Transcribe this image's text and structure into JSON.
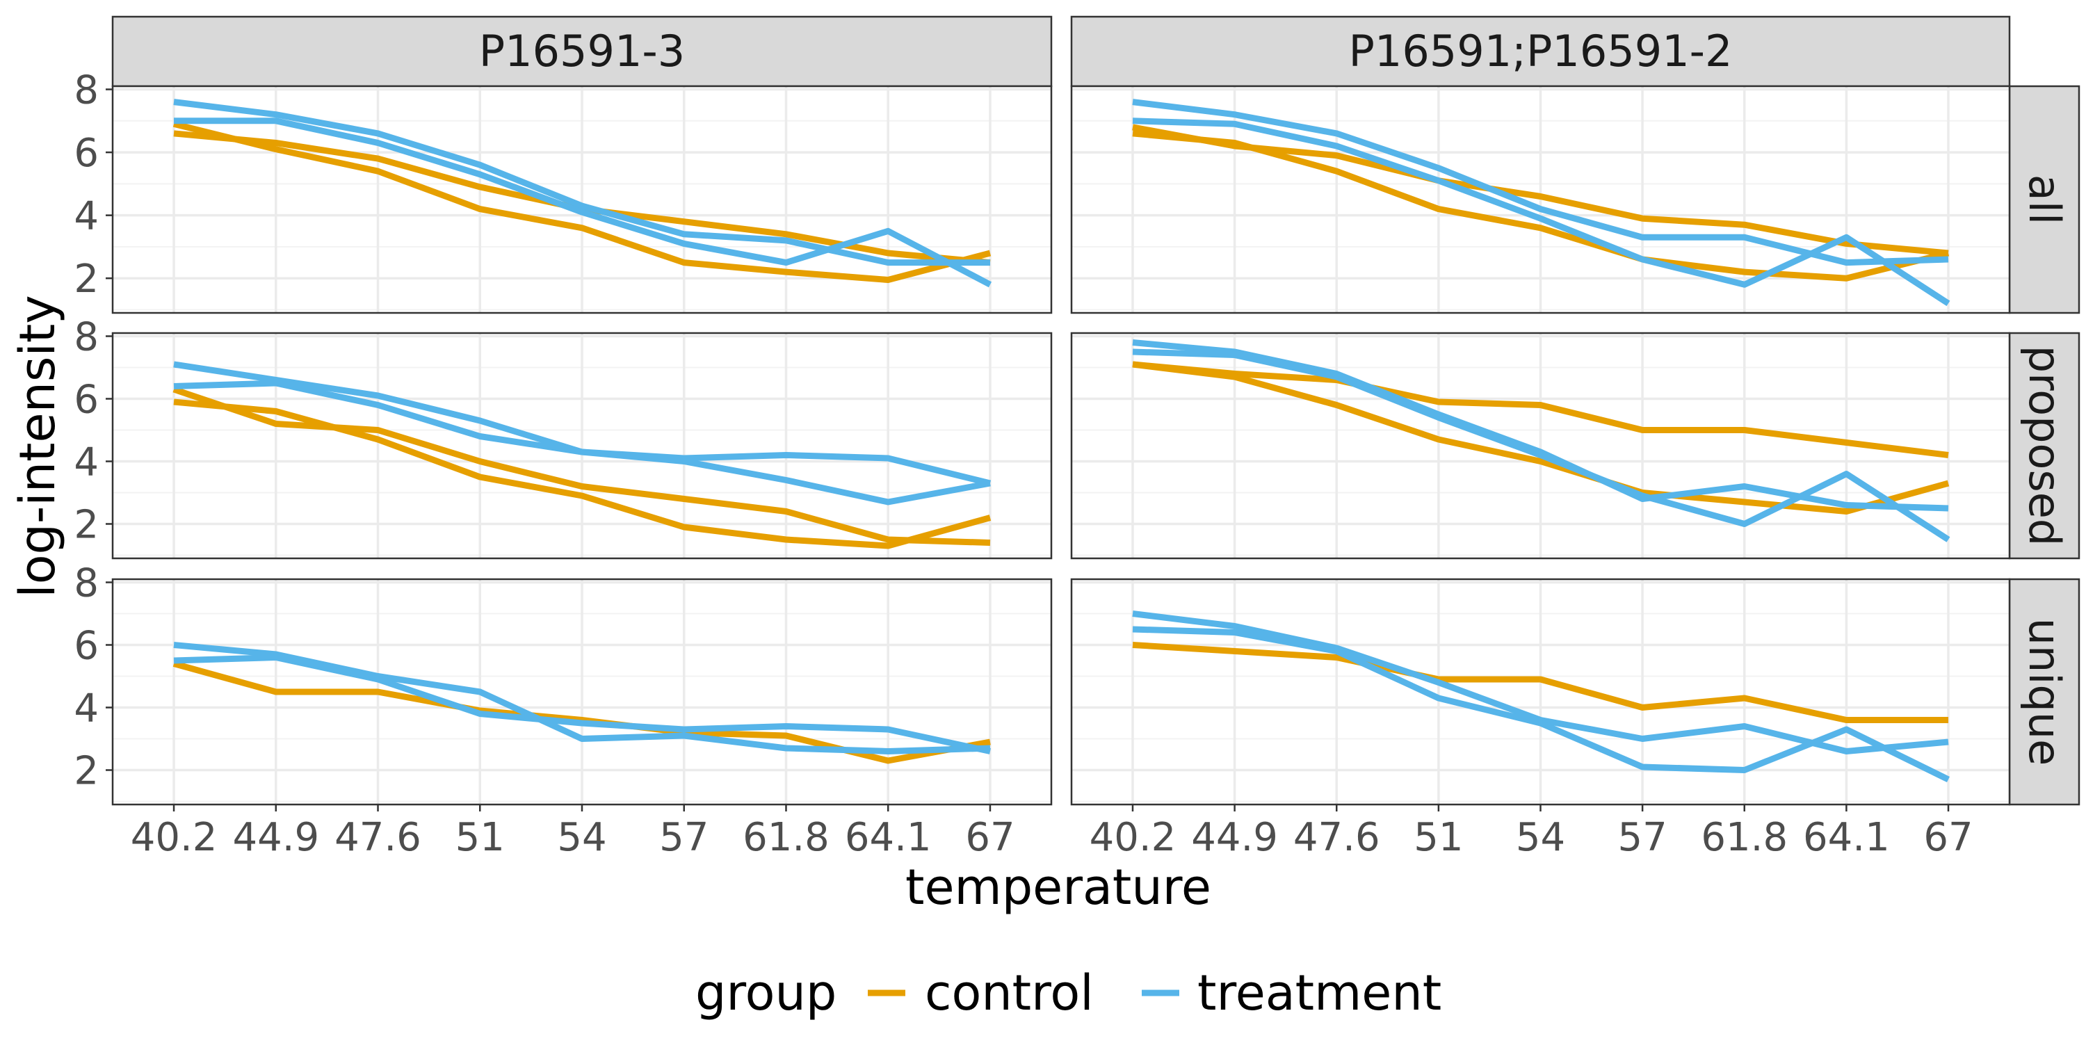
{
  "chart_data": {
    "type": "line",
    "xlabel": "temperature",
    "ylabel": "log-intensity",
    "x_categories": [
      "40.2",
      "44.9",
      "47.6",
      "51",
      "54",
      "57",
      "61.8",
      "64.1",
      "67"
    ],
    "ylim": [
      0.9,
      8.1
    ],
    "y_ticks": [
      2,
      4,
      6,
      8
    ],
    "columns": [
      "P16591-3",
      "P16591;P16591-2"
    ],
    "rows": [
      "all",
      "proposed",
      "unique"
    ],
    "grid": true,
    "legend": {
      "title": "group",
      "position": "bottom",
      "items": [
        {
          "label": "control",
          "color": "#E69F00"
        },
        {
          "label": "treatment",
          "color": "#56B4E9"
        }
      ]
    },
    "series_colors": {
      "control": "#E69F00",
      "treatment": "#56B4E9"
    },
    "panels": [
      {
        "column": "P16591-3",
        "row": "all",
        "lines": [
          {
            "group": "control",
            "y": [
              6.6,
              6.3,
              5.8,
              4.9,
              4.2,
              3.8,
              3.4,
              2.8,
              2.5
            ]
          },
          {
            "group": "control",
            "y": [
              6.9,
              6.1,
              5.4,
              4.2,
              3.6,
              2.5,
              2.2,
              1.95,
              2.8
            ]
          },
          {
            "group": "treatment",
            "y": [
              7.6,
              7.2,
              6.6,
              5.6,
              4.3,
              3.4,
              3.2,
              2.5,
              2.5
            ]
          },
          {
            "group": "treatment",
            "y": [
              7.0,
              7.0,
              6.3,
              5.3,
              4.1,
              3.1,
              2.5,
              3.5,
              1.8
            ]
          }
        ]
      },
      {
        "column": "P16591;P16591-2",
        "row": "all",
        "lines": [
          {
            "group": "control",
            "y": [
              6.8,
              6.2,
              5.9,
              5.1,
              4.6,
              3.9,
              3.7,
              3.1,
              2.8
            ]
          },
          {
            "group": "control",
            "y": [
              6.6,
              6.3,
              5.4,
              4.2,
              3.6,
              2.6,
              2.2,
              2.0,
              2.8
            ]
          },
          {
            "group": "treatment",
            "y": [
              7.6,
              7.2,
              6.6,
              5.5,
              4.2,
              3.3,
              3.3,
              2.5,
              2.6
            ]
          },
          {
            "group": "treatment",
            "y": [
              7.0,
              6.9,
              6.2,
              5.1,
              3.9,
              2.6,
              1.8,
              3.3,
              1.2
            ]
          }
        ]
      },
      {
        "column": "P16591-3",
        "row": "proposed",
        "lines": [
          {
            "group": "control",
            "y": [
              5.9,
              5.6,
              4.7,
              3.5,
              2.9,
              1.9,
              1.5,
              1.3,
              2.2
            ]
          },
          {
            "group": "control",
            "y": [
              6.3,
              5.2,
              5.0,
              4.0,
              3.2,
              2.8,
              2.4,
              1.5,
              1.4
            ]
          },
          {
            "group": "treatment",
            "y": [
              7.1,
              6.6,
              6.1,
              5.3,
              4.3,
              4.1,
              4.2,
              4.1,
              3.3
            ]
          },
          {
            "group": "treatment",
            "y": [
              6.4,
              6.5,
              5.8,
              4.8,
              4.3,
              4.0,
              3.4,
              2.7,
              3.3
            ]
          }
        ]
      },
      {
        "column": "P16591;P16591-2",
        "row": "proposed",
        "lines": [
          {
            "group": "control",
            "y": [
              7.1,
              6.8,
              6.6,
              5.9,
              5.8,
              5.0,
              5.0,
              4.6,
              4.2
            ]
          },
          {
            "group": "control",
            "y": [
              7.1,
              6.7,
              5.8,
              4.7,
              4.0,
              3.0,
              2.7,
              2.4,
              3.3
            ]
          },
          {
            "group": "treatment",
            "y": [
              7.8,
              7.5,
              6.8,
              5.5,
              4.3,
              2.8,
              3.2,
              2.6,
              2.5
            ]
          },
          {
            "group": "treatment",
            "y": [
              7.5,
              7.4,
              6.7,
              5.4,
              4.2,
              2.9,
              2.0,
              3.6,
              1.5
            ]
          }
        ]
      },
      {
        "column": "P16591-3",
        "row": "unique",
        "lines": [
          {
            "group": "control",
            "y": [
              5.4,
              4.5,
              4.5,
              3.9,
              3.6,
              3.2,
              3.1,
              2.3,
              2.9
            ]
          },
          {
            "group": "treatment",
            "y": [
              6.0,
              5.7,
              5.0,
              4.5,
              3.0,
              3.1,
              2.7,
              2.6,
              2.7
            ]
          },
          {
            "group": "treatment",
            "y": [
              5.5,
              5.6,
              4.9,
              3.8,
              3.5,
              3.3,
              3.4,
              3.3,
              2.6
            ]
          }
        ]
      },
      {
        "column": "P16591;P16591-2",
        "row": "unique",
        "lines": [
          {
            "group": "control",
            "y": [
              6.0,
              5.8,
              5.6,
              4.9,
              4.9,
              4.0,
              4.3,
              3.6,
              3.6
            ]
          },
          {
            "group": "treatment",
            "y": [
              7.0,
              6.6,
              5.9,
              4.8,
              3.6,
              3.0,
              3.4,
              2.6,
              2.9
            ]
          },
          {
            "group": "treatment",
            "y": [
              6.5,
              6.4,
              5.8,
              4.3,
              3.5,
              2.1,
              2.0,
              3.3,
              1.7
            ]
          }
        ]
      }
    ]
  }
}
